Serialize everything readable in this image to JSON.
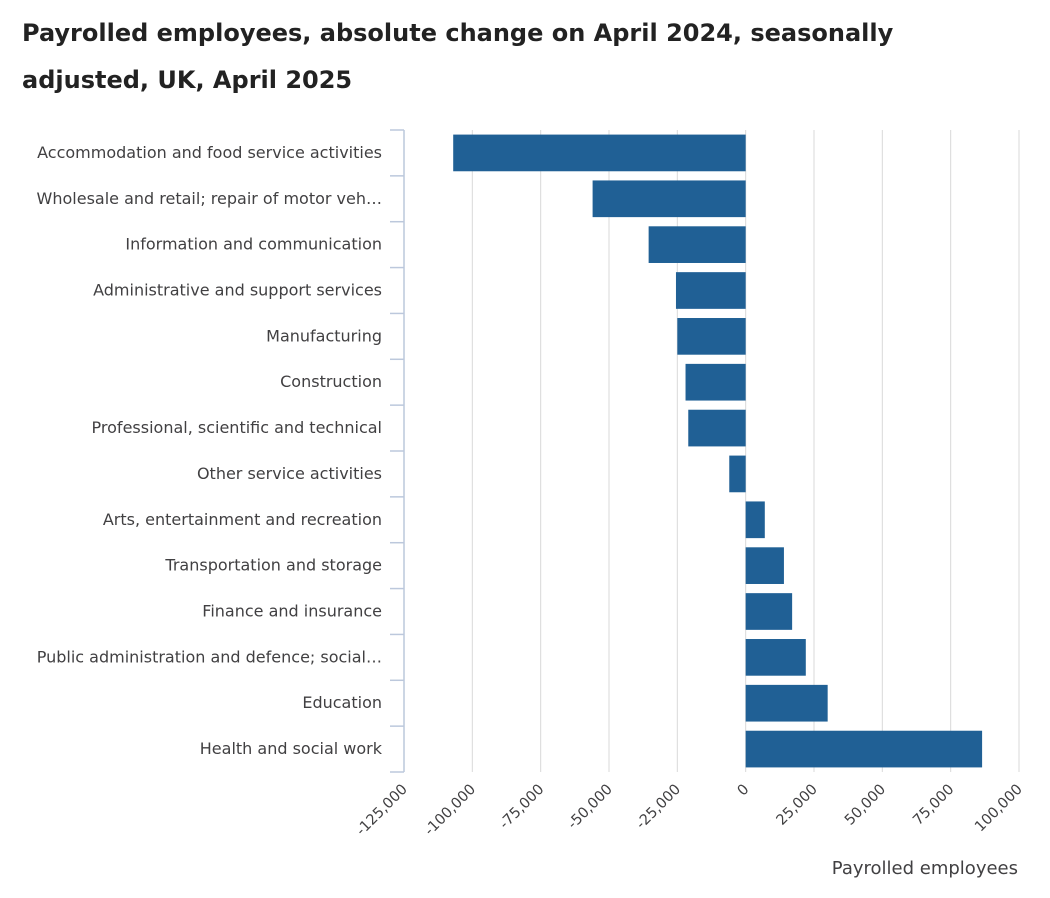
{
  "chart_data": {
    "type": "bar",
    "orientation": "horizontal",
    "title": "Payrolled employees, absolute change on April 2024, seasonally adjusted, UK, April 2025",
    "xlabel": "Payrolled employees",
    "ylabel": "",
    "xlim": [
      -125000,
      100000
    ],
    "xticks": [
      -125000,
      -100000,
      -75000,
      -50000,
      -25000,
      0,
      25000,
      50000,
      75000,
      100000
    ],
    "xtick_labels": [
      "-125,000",
      "-100,000",
      "-75,000",
      "-50,000",
      "-25,000",
      "0",
      "25,000",
      "50,000",
      "75,000",
      "100,000"
    ],
    "categories": [
      "Accommodation and food service activities",
      "Wholesale and retail; repair of motor veh…",
      "Information and communication",
      "Administrative and support services",
      "Manufacturing",
      "Construction",
      "Professional, scientific and technical",
      "Other service activities",
      "Arts, entertainment and recreation",
      "Transportation and storage",
      "Finance and insurance",
      "Public administration and defence; social…",
      "Education",
      "Health and social work"
    ],
    "values": [
      -107000,
      -56000,
      -35500,
      -25500,
      -25000,
      -22000,
      -21000,
      -6000,
      7000,
      14000,
      17000,
      22000,
      30000,
      86500
    ],
    "grid": true,
    "legend": "none",
    "bar_color": "#206095",
    "grid_color": "#d9d9d9",
    "axis_color": "#bcc8dc"
  }
}
